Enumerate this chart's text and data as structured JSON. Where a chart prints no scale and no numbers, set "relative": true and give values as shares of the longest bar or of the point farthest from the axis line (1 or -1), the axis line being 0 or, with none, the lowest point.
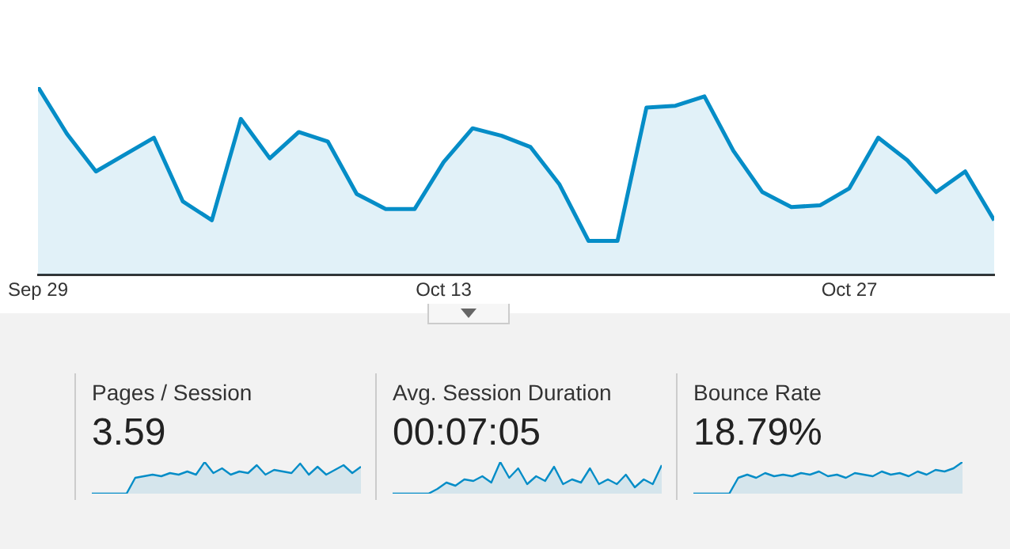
{
  "chart_data": [
    {
      "type": "area",
      "relative": true,
      "x": [
        "--09-29",
        "--09-30",
        "--10-01",
        "--10-02",
        "--10-03",
        "--10-04",
        "--10-05",
        "--10-06",
        "--10-07",
        "--10-08",
        "--10-09",
        "--10-10",
        "--10-11",
        "--10-12",
        "--10-13",
        "--10-14",
        "--10-15",
        "--10-16",
        "--10-17",
        "--10-18",
        "--10-19",
        "--10-20",
        "--10-21",
        "--10-22",
        "--10-23",
        "--10-24",
        "--10-25",
        "--10-26",
        "--10-27",
        "--10-28",
        "--10-29",
        "--10-30",
        "--10-31",
        "--11-01"
      ],
      "series": [
        {
          "color": "#058dc7",
          "values": [
            1.0,
            0.75,
            0.55,
            0.64,
            0.73,
            0.39,
            0.29,
            0.83,
            0.62,
            0.76,
            0.71,
            0.43,
            0.35,
            0.35,
            0.6,
            0.78,
            0.74,
            0.68,
            0.48,
            0.18,
            0.18,
            0.89,
            0.9,
            0.95,
            0.66,
            0.44,
            0.36,
            0.37,
            0.46,
            0.73,
            0.61,
            0.44,
            0.55,
            0.29
          ]
        }
      ],
      "xlim": [
        "--09-29",
        "--11-01"
      ],
      "xticks": [
        {
          "value": "--09-29",
          "label": "Sep 29"
        },
        {
          "value": "--10-13",
          "label": "Oct 13"
        },
        {
          "value": "--10-27",
          "label": "Oct 27"
        }
      ]
    },
    {
      "type": "area",
      "relative": true,
      "title": "Pages / Session",
      "subtitle": "3.59",
      "categories": [
        null,
        null,
        null,
        null,
        null,
        null,
        null,
        null,
        null,
        null,
        null,
        null,
        null,
        null,
        null,
        null,
        null,
        null,
        null,
        null,
        null,
        null,
        null,
        null,
        null,
        null,
        null,
        null,
        null,
        null,
        null,
        null
      ],
      "series": [
        {
          "color": "#058dc7",
          "values": [
            0,
            0,
            0,
            0,
            0,
            0.5,
            0.55,
            0.6,
            0.55,
            0.65,
            0.6,
            0.7,
            0.6,
            1,
            0.65,
            0.8,
            0.6,
            0.7,
            0.65,
            0.9,
            0.6,
            0.75,
            0.7,
            0.65,
            0.95,
            0.6,
            0.85,
            0.6,
            0.75,
            0.9,
            0.65,
            0.85
          ]
        }
      ]
    },
    {
      "type": "area",
      "relative": true,
      "title": "Avg. Session Duration",
      "subtitle": "00:07:05",
      "categories": [
        null,
        null,
        null,
        null,
        null,
        null,
        null,
        null,
        null,
        null,
        null,
        null,
        null,
        null,
        null,
        null,
        null,
        null,
        null,
        null,
        null,
        null,
        null,
        null,
        null,
        null,
        null,
        null,
        null,
        null,
        null
      ],
      "series": [
        {
          "color": "#058dc7",
          "values": [
            0,
            0,
            0,
            0,
            0,
            0.15,
            0.35,
            0.25,
            0.45,
            0.4,
            0.55,
            0.35,
            1,
            0.5,
            0.8,
            0.3,
            0.55,
            0.4,
            0.85,
            0.3,
            0.45,
            0.35,
            0.8,
            0.3,
            0.45,
            0.3,
            0.6,
            0.2,
            0.45,
            0.3,
            0.9
          ]
        }
      ]
    },
    {
      "type": "area",
      "relative": true,
      "title": "Bounce Rate",
      "subtitle": "18.79%",
      "categories": [
        null,
        null,
        null,
        null,
        null,
        null,
        null,
        null,
        null,
        null,
        null,
        null,
        null,
        null,
        null,
        null,
        null,
        null,
        null,
        null,
        null,
        null,
        null,
        null,
        null,
        null,
        null,
        null,
        null,
        null,
        null
      ],
      "series": [
        {
          "color": "#058dc7",
          "values": [
            0,
            0,
            0,
            0,
            0,
            0.5,
            0.6,
            0.5,
            0.65,
            0.55,
            0.6,
            0.55,
            0.65,
            0.6,
            0.7,
            0.55,
            0.6,
            0.5,
            0.65,
            0.6,
            0.55,
            0.7,
            0.6,
            0.65,
            0.55,
            0.7,
            0.6,
            0.75,
            0.7,
            0.8,
            1
          ]
        }
      ]
    }
  ]
}
